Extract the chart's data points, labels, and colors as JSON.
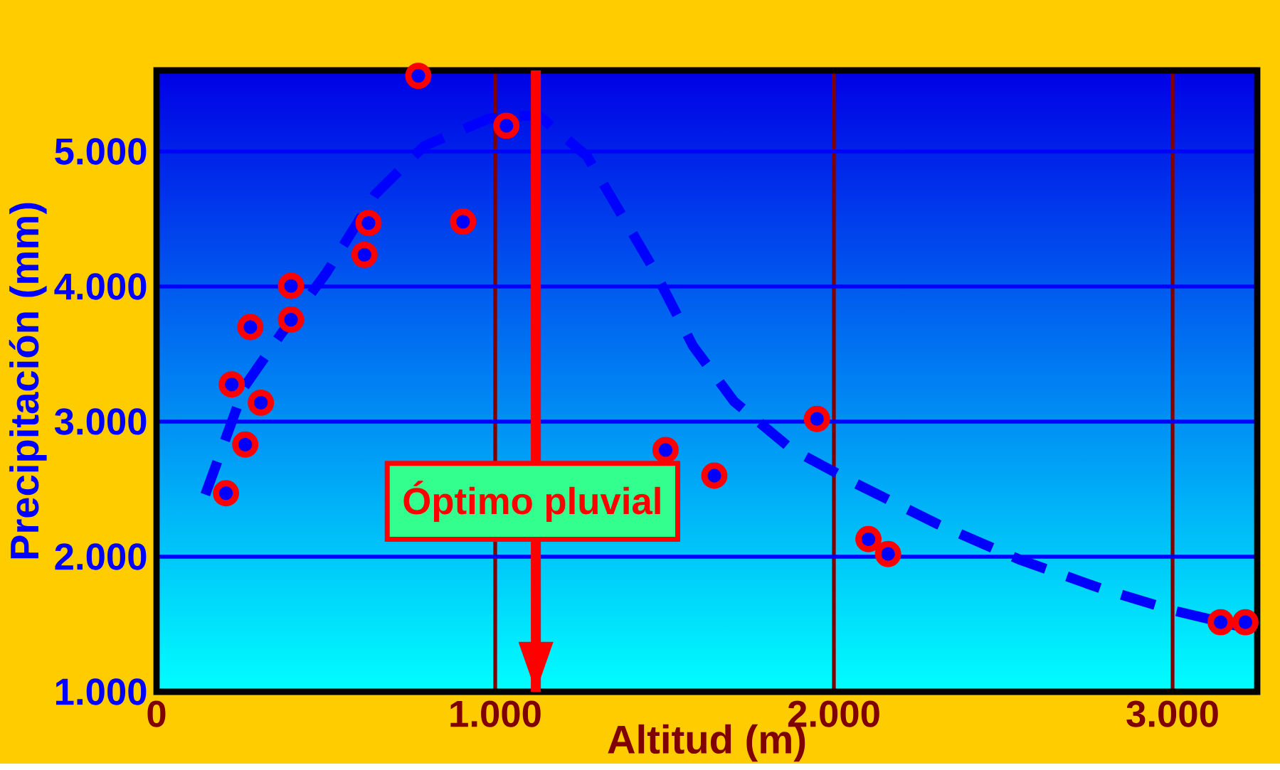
{
  "chart_data": {
    "type": "scatter",
    "xlabel": "Altitud (m)",
    "ylabel": "Precipitación (mm)",
    "xlim": [
      0,
      3250
    ],
    "ylim": [
      1000,
      5600
    ],
    "xticks": [
      0,
      {
        "value": 1000,
        "label": "1.000"
      },
      {
        "value": 2000,
        "label": "2.000"
      },
      {
        "value": 3000,
        "label": "3.000"
      }
    ],
    "yticks": [
      {
        "value": 1000,
        "label": "1.000"
      },
      {
        "value": 2000,
        "label": "2.000"
      },
      {
        "value": 3000,
        "label": "3.000"
      },
      {
        "value": 4000,
        "label": "4.000"
      },
      {
        "value": 5000,
        "label": "5.000"
      }
    ],
    "grid": true,
    "series": [
      {
        "color": "#ff0000",
        "marker": "circle",
        "x": [
          205,
          222,
          262,
          277,
          308,
          397,
          397,
          614,
          626,
          773,
          905,
          1033,
          1503,
          1647,
          1950,
          2102,
          2160,
          3142,
          3215
        ],
        "values": [
          2470,
          3275,
          2830,
          3700,
          3140,
          4005,
          3755,
          4235,
          4470,
          5560,
          4480,
          5190,
          2790,
          2600,
          3020,
          2130,
          2020,
          1515,
          1515
        ]
      },
      {
        "type": "line",
        "color": "#0000ff",
        "line_style": "dashed",
        "marker": "none",
        "x": [
          144,
          260,
          368,
          501,
          645,
          790,
          982,
          1127,
          1271,
          1464,
          1584,
          1705,
          1873,
          2066,
          2307,
          2547,
          2788,
          3005,
          3222
        ],
        "values": [
          2460,
          3260,
          3650,
          4100,
          4680,
          5040,
          5245,
          5270,
          4965,
          4145,
          3560,
          3150,
          2800,
          2540,
          2240,
          1980,
          1765,
          1600,
          1470
        ]
      }
    ],
    "ref_lines": [
      {
        "axis": "x",
        "value": 1120,
        "label": "Óptimo pluvial",
        "color": "#ff0000"
      }
    ]
  }
}
